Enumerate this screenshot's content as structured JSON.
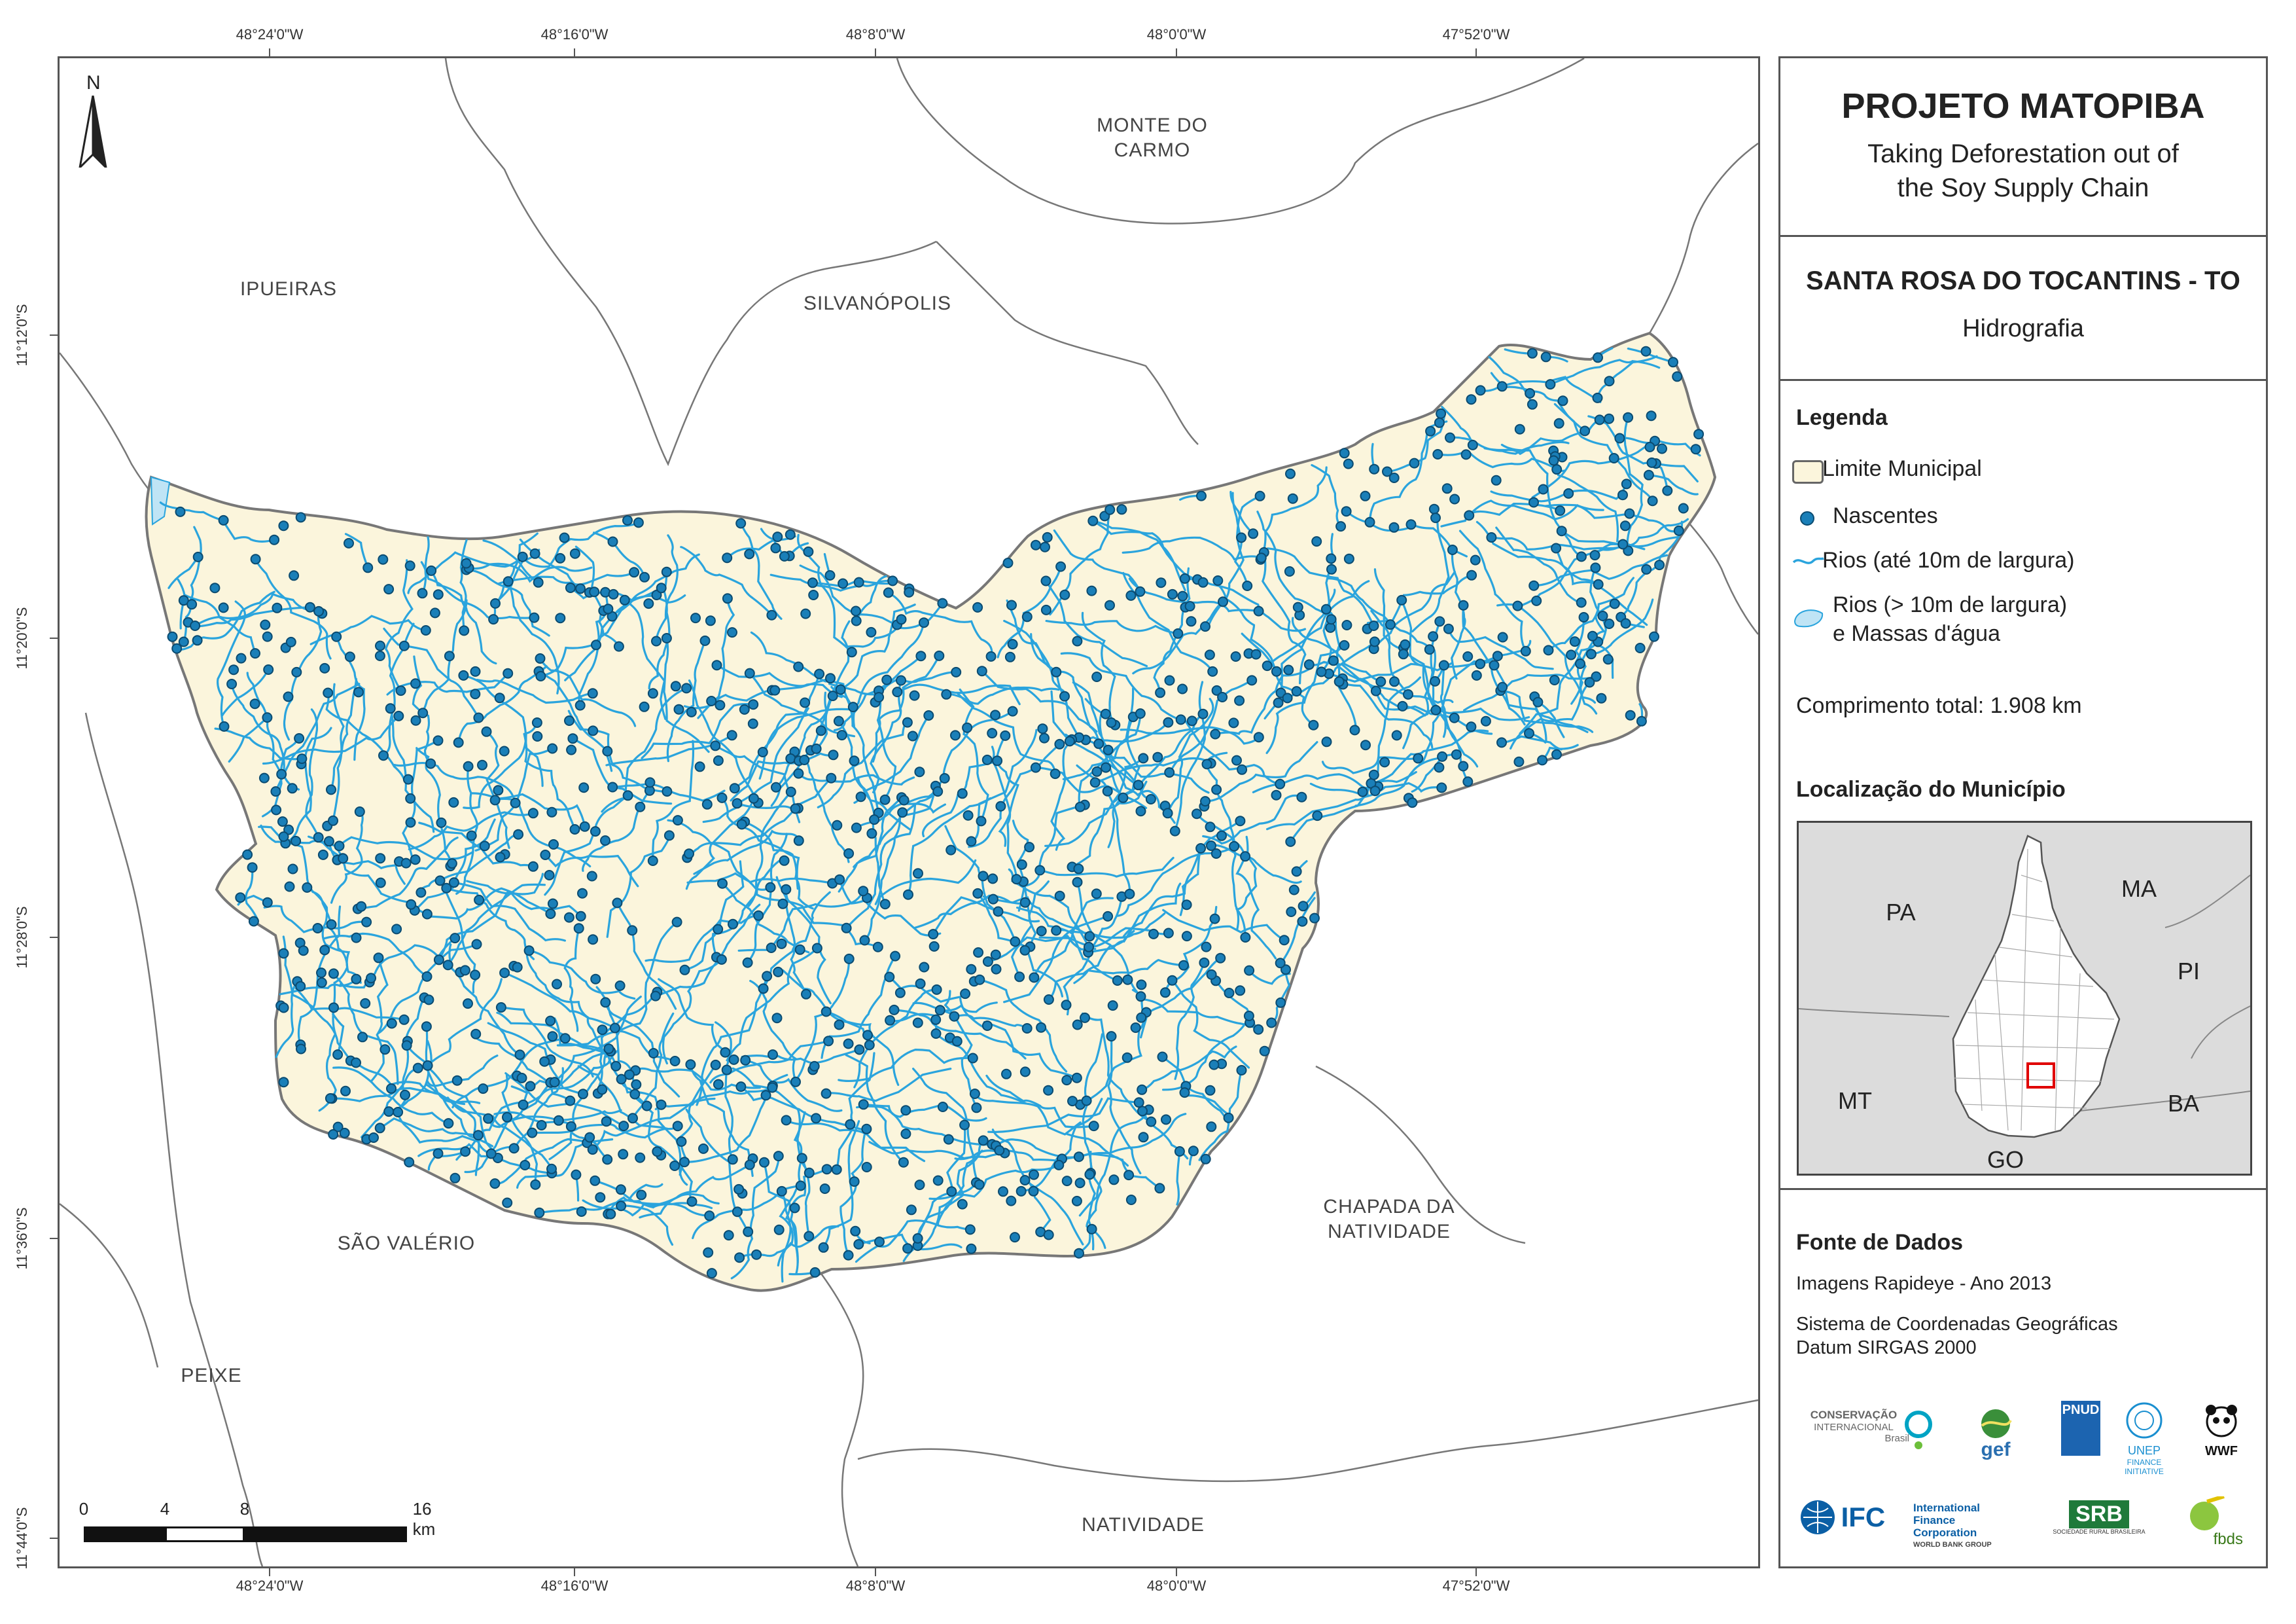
{
  "coords": {
    "top": [
      "48°24'0\"W",
      "48°16'0\"W",
      "48°8'0\"W",
      "48°0'0\"W",
      "47°52'0\"W"
    ],
    "bottom": [
      "48°24'0\"W",
      "48°16'0\"W",
      "48°8'0\"W",
      "48°0'0\"W",
      "47°52'0\"W"
    ],
    "left": [
      "11°12'0\"S",
      "11°20'0\"S",
      "11°28'0\"S",
      "11°36'0\"S",
      "11°44'0\"S"
    ]
  },
  "neighbors": {
    "monte_do_carmo": "MONTE DO\nCARMO",
    "ipueiras": "IPUEIRAS",
    "silvanopolis": "SILVANÓPOLIS",
    "sao_valerio": "SÃO VALÉRIO",
    "chapada": "CHAPADA DA\nNATIVIDADE",
    "peixe": "PEIXE",
    "natividade": "NATIVIDADE"
  },
  "north_label": "N",
  "scale": {
    "ticks": [
      "0",
      "4",
      "8",
      "16 km"
    ]
  },
  "panel": {
    "title": "PROJETO MATOPIBA",
    "subtitle_1": "Taking Deforestation out of",
    "subtitle_2": "the Soy Supply Chain",
    "municipality": "SANTA ROSA DO TOCANTINS - TO",
    "theme": "Hidrografia",
    "legend_title": "Legenda",
    "legend": {
      "limite": "Limite Municipal",
      "nascentes": "Nascentes",
      "rios_small": "Rios (até 10m de largura)",
      "rios_large_1": "Rios (> 10m de largura)",
      "rios_large_2": "e Massas d'água"
    },
    "comprimento": "Comprimento total: 1.908 km",
    "loc_title": "Localização do Município",
    "states": {
      "pa": "PA",
      "ma": "MA",
      "pi": "PI",
      "mt": "MT",
      "ba": "BA",
      "go": "GO"
    },
    "fonte_title": "Fonte de Dados",
    "fonte_1": "Imagens Rapideye - Ano 2013",
    "fonte_2": "Sistema de Coordenadas Geográficas",
    "fonte_3": "Datum SIRGAS 2000"
  },
  "logos": {
    "ci_1": "CONSERVAÇÃO",
    "ci_2": "INTERNACIONAL",
    "ci_3": "Brasil",
    "gef": "gef",
    "pnud": "PNUD",
    "unep_1": "UNEP",
    "unep_2": "FINANCE",
    "unep_3": "INITIATIVE",
    "wwf": "WWF",
    "ifc": "IFC",
    "ifc_1": "International",
    "ifc_2": "Finance Corporation",
    "ifc_3": "WORLD BANK GROUP",
    "srb": "SRB",
    "srb_sub": "SOCIEDADE RURAL BRASILEIRA",
    "fbds": "fbds"
  },
  "colors": {
    "land": "#fbf5dc",
    "river": "#2aa4dd",
    "spring": "#1a7fb8",
    "boundary": "#777777",
    "locator_bg": "#dcdcdc",
    "highlight": "#e00000"
  }
}
